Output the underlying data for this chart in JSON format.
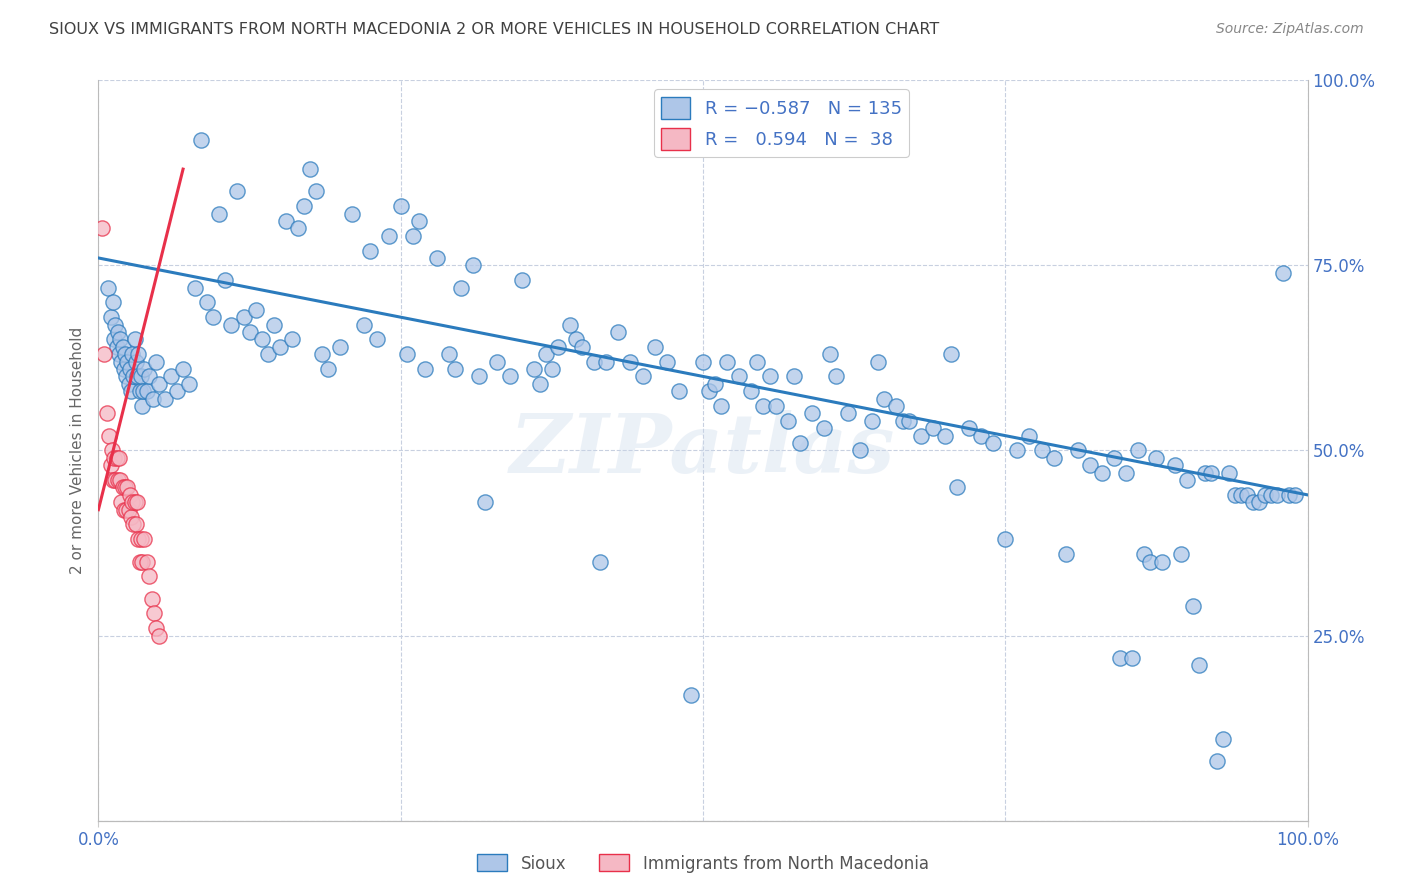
{
  "title": "SIOUX VS IMMIGRANTS FROM NORTH MACEDONIA 2 OR MORE VEHICLES IN HOUSEHOLD CORRELATION CHART",
  "source": "Source: ZipAtlas.com",
  "ylabel": "2 or more Vehicles in Household",
  "xlim": [
    0.0,
    1.0
  ],
  "ylim": [
    0.0,
    1.0
  ],
  "ytick_positions": [
    0.0,
    0.25,
    0.5,
    0.75,
    1.0
  ],
  "ytick_labels_right": [
    "",
    "25.0%",
    "50.0%",
    "75.0%",
    "100.0%"
  ],
  "xtick_positions": [
    0.0,
    1.0
  ],
  "xtick_labels": [
    "0.0%",
    "100.0%"
  ],
  "blue_color": "#aec6e8",
  "pink_color": "#f5b8c4",
  "line_blue": "#2b7bbd",
  "line_pink": "#e8304a",
  "tick_color": "#4472c4",
  "title_color": "#404040",
  "watermark": "ZIPatlas",
  "blue_line_x": [
    0.0,
    1.0
  ],
  "blue_line_y": [
    0.76,
    0.44
  ],
  "pink_line_x": [
    0.0,
    0.07
  ],
  "pink_line_y": [
    0.42,
    0.88
  ],
  "blue_scatter": [
    [
      0.008,
      0.72
    ],
    [
      0.01,
      0.68
    ],
    [
      0.012,
      0.7
    ],
    [
      0.013,
      0.65
    ],
    [
      0.014,
      0.67
    ],
    [
      0.015,
      0.64
    ],
    [
      0.016,
      0.66
    ],
    [
      0.017,
      0.63
    ],
    [
      0.018,
      0.65
    ],
    [
      0.019,
      0.62
    ],
    [
      0.02,
      0.64
    ],
    [
      0.021,
      0.61
    ],
    [
      0.022,
      0.63
    ],
    [
      0.023,
      0.6
    ],
    [
      0.024,
      0.62
    ],
    [
      0.025,
      0.59
    ],
    [
      0.026,
      0.61
    ],
    [
      0.027,
      0.58
    ],
    [
      0.028,
      0.63
    ],
    [
      0.029,
      0.6
    ],
    [
      0.03,
      0.65
    ],
    [
      0.031,
      0.62
    ],
    [
      0.032,
      0.6
    ],
    [
      0.033,
      0.63
    ],
    [
      0.034,
      0.58
    ],
    [
      0.035,
      0.6
    ],
    [
      0.036,
      0.56
    ],
    [
      0.037,
      0.58
    ],
    [
      0.038,
      0.61
    ],
    [
      0.04,
      0.58
    ],
    [
      0.042,
      0.6
    ],
    [
      0.045,
      0.57
    ],
    [
      0.048,
      0.62
    ],
    [
      0.05,
      0.59
    ],
    [
      0.055,
      0.57
    ],
    [
      0.06,
      0.6
    ],
    [
      0.065,
      0.58
    ],
    [
      0.07,
      0.61
    ],
    [
      0.075,
      0.59
    ],
    [
      0.08,
      0.72
    ],
    [
      0.085,
      0.92
    ],
    [
      0.09,
      0.7
    ],
    [
      0.095,
      0.68
    ],
    [
      0.1,
      0.82
    ],
    [
      0.105,
      0.73
    ],
    [
      0.11,
      0.67
    ],
    [
      0.115,
      0.85
    ],
    [
      0.12,
      0.68
    ],
    [
      0.125,
      0.66
    ],
    [
      0.13,
      0.69
    ],
    [
      0.135,
      0.65
    ],
    [
      0.14,
      0.63
    ],
    [
      0.145,
      0.67
    ],
    [
      0.15,
      0.64
    ],
    [
      0.155,
      0.81
    ],
    [
      0.16,
      0.65
    ],
    [
      0.165,
      0.8
    ],
    [
      0.17,
      0.83
    ],
    [
      0.175,
      0.88
    ],
    [
      0.18,
      0.85
    ],
    [
      0.185,
      0.63
    ],
    [
      0.19,
      0.61
    ],
    [
      0.2,
      0.64
    ],
    [
      0.21,
      0.82
    ],
    [
      0.22,
      0.67
    ],
    [
      0.225,
      0.77
    ],
    [
      0.23,
      0.65
    ],
    [
      0.24,
      0.79
    ],
    [
      0.25,
      0.83
    ],
    [
      0.255,
      0.63
    ],
    [
      0.26,
      0.79
    ],
    [
      0.265,
      0.81
    ],
    [
      0.27,
      0.61
    ],
    [
      0.28,
      0.76
    ],
    [
      0.29,
      0.63
    ],
    [
      0.295,
      0.61
    ],
    [
      0.3,
      0.72
    ],
    [
      0.31,
      0.75
    ],
    [
      0.315,
      0.6
    ],
    [
      0.32,
      0.43
    ],
    [
      0.33,
      0.62
    ],
    [
      0.34,
      0.6
    ],
    [
      0.35,
      0.73
    ],
    [
      0.36,
      0.61
    ],
    [
      0.365,
      0.59
    ],
    [
      0.37,
      0.63
    ],
    [
      0.375,
      0.61
    ],
    [
      0.38,
      0.64
    ],
    [
      0.39,
      0.67
    ],
    [
      0.395,
      0.65
    ],
    [
      0.4,
      0.64
    ],
    [
      0.41,
      0.62
    ],
    [
      0.415,
      0.35
    ],
    [
      0.42,
      0.62
    ],
    [
      0.43,
      0.66
    ],
    [
      0.44,
      0.62
    ],
    [
      0.45,
      0.6
    ],
    [
      0.46,
      0.64
    ],
    [
      0.47,
      0.62
    ],
    [
      0.48,
      0.58
    ],
    [
      0.49,
      0.17
    ],
    [
      0.5,
      0.62
    ],
    [
      0.505,
      0.58
    ],
    [
      0.51,
      0.59
    ],
    [
      0.515,
      0.56
    ],
    [
      0.52,
      0.62
    ],
    [
      0.53,
      0.6
    ],
    [
      0.54,
      0.58
    ],
    [
      0.545,
      0.62
    ],
    [
      0.55,
      0.56
    ],
    [
      0.555,
      0.6
    ],
    [
      0.56,
      0.56
    ],
    [
      0.57,
      0.54
    ],
    [
      0.575,
      0.6
    ],
    [
      0.58,
      0.51
    ],
    [
      0.59,
      0.55
    ],
    [
      0.6,
      0.53
    ],
    [
      0.605,
      0.63
    ],
    [
      0.61,
      0.6
    ],
    [
      0.62,
      0.55
    ],
    [
      0.63,
      0.5
    ],
    [
      0.64,
      0.54
    ],
    [
      0.645,
      0.62
    ],
    [
      0.65,
      0.57
    ],
    [
      0.66,
      0.56
    ],
    [
      0.665,
      0.54
    ],
    [
      0.67,
      0.54
    ],
    [
      0.68,
      0.52
    ],
    [
      0.69,
      0.53
    ],
    [
      0.7,
      0.52
    ],
    [
      0.705,
      0.63
    ],
    [
      0.71,
      0.45
    ],
    [
      0.72,
      0.53
    ],
    [
      0.73,
      0.52
    ],
    [
      0.74,
      0.51
    ],
    [
      0.75,
      0.38
    ],
    [
      0.76,
      0.5
    ],
    [
      0.77,
      0.52
    ],
    [
      0.78,
      0.5
    ],
    [
      0.79,
      0.49
    ],
    [
      0.8,
      0.36
    ],
    [
      0.81,
      0.5
    ],
    [
      0.82,
      0.48
    ],
    [
      0.83,
      0.47
    ],
    [
      0.84,
      0.49
    ],
    [
      0.845,
      0.22
    ],
    [
      0.85,
      0.47
    ],
    [
      0.855,
      0.22
    ],
    [
      0.86,
      0.5
    ],
    [
      0.865,
      0.36
    ],
    [
      0.87,
      0.35
    ],
    [
      0.875,
      0.49
    ],
    [
      0.88,
      0.35
    ],
    [
      0.89,
      0.48
    ],
    [
      0.895,
      0.36
    ],
    [
      0.9,
      0.46
    ],
    [
      0.905,
      0.29
    ],
    [
      0.91,
      0.21
    ],
    [
      0.915,
      0.47
    ],
    [
      0.92,
      0.47
    ],
    [
      0.925,
      0.08
    ],
    [
      0.93,
      0.11
    ],
    [
      0.935,
      0.47
    ],
    [
      0.94,
      0.44
    ],
    [
      0.945,
      0.44
    ],
    [
      0.95,
      0.44
    ],
    [
      0.955,
      0.43
    ],
    [
      0.96,
      0.43
    ],
    [
      0.965,
      0.44
    ],
    [
      0.97,
      0.44
    ],
    [
      0.975,
      0.44
    ],
    [
      0.98,
      0.74
    ],
    [
      0.985,
      0.44
    ],
    [
      0.99,
      0.44
    ]
  ],
  "pink_scatter": [
    [
      0.003,
      0.8
    ],
    [
      0.005,
      0.63
    ],
    [
      0.007,
      0.55
    ],
    [
      0.009,
      0.52
    ],
    [
      0.01,
      0.48
    ],
    [
      0.011,
      0.5
    ],
    [
      0.012,
      0.46
    ],
    [
      0.013,
      0.49
    ],
    [
      0.014,
      0.46
    ],
    [
      0.015,
      0.49
    ],
    [
      0.016,
      0.46
    ],
    [
      0.017,
      0.49
    ],
    [
      0.018,
      0.46
    ],
    [
      0.019,
      0.43
    ],
    [
      0.02,
      0.45
    ],
    [
      0.021,
      0.42
    ],
    [
      0.022,
      0.45
    ],
    [
      0.023,
      0.42
    ],
    [
      0.024,
      0.45
    ],
    [
      0.025,
      0.42
    ],
    [
      0.026,
      0.44
    ],
    [
      0.027,
      0.41
    ],
    [
      0.028,
      0.43
    ],
    [
      0.029,
      0.4
    ],
    [
      0.03,
      0.43
    ],
    [
      0.031,
      0.4
    ],
    [
      0.032,
      0.43
    ],
    [
      0.033,
      0.38
    ],
    [
      0.034,
      0.35
    ],
    [
      0.035,
      0.38
    ],
    [
      0.036,
      0.35
    ],
    [
      0.038,
      0.38
    ],
    [
      0.04,
      0.35
    ],
    [
      0.042,
      0.33
    ],
    [
      0.044,
      0.3
    ],
    [
      0.046,
      0.28
    ],
    [
      0.048,
      0.26
    ],
    [
      0.05,
      0.25
    ]
  ]
}
